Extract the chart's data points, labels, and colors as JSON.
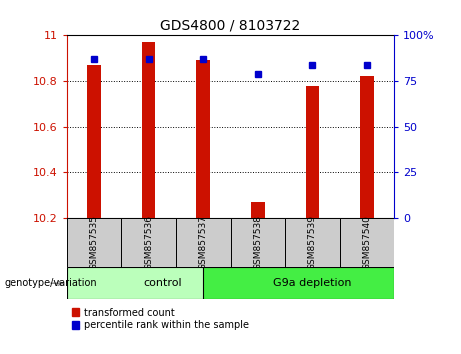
{
  "title": "GDS4800 / 8103722",
  "samples": [
    "GSM857535",
    "GSM857536",
    "GSM857537",
    "GSM857538",
    "GSM857539",
    "GSM857540"
  ],
  "transformed_count": [
    10.87,
    10.97,
    10.89,
    10.27,
    10.78,
    10.82
  ],
  "percentile_rank": [
    87,
    87,
    87,
    79,
    84,
    84
  ],
  "ylim_left": [
    10.2,
    11.0
  ],
  "ylim_right": [
    0,
    100
  ],
  "yticks_left": [
    10.2,
    10.4,
    10.6,
    10.8,
    11.0
  ],
  "yticks_right": [
    0,
    25,
    50,
    75,
    100
  ],
  "bar_color": "#CC1100",
  "marker_color": "#0000CC",
  "bar_width": 0.25,
  "tick_label_color_left": "#CC1100",
  "tick_label_color_right": "#0000CC",
  "legend_items": [
    "transformed count",
    "percentile rank within the sample"
  ],
  "group_label": "genotype/variation",
  "control_color": "#BBFFBB",
  "depletion_color": "#44EE44",
  "sample_box_color": "#CCCCCC",
  "ytick_left_label": [
    "10.2",
    "10.4",
    "10.6",
    "10.8",
    "11"
  ],
  "ytick_right_label": [
    "0",
    "25",
    "50",
    "75",
    "100%"
  ]
}
